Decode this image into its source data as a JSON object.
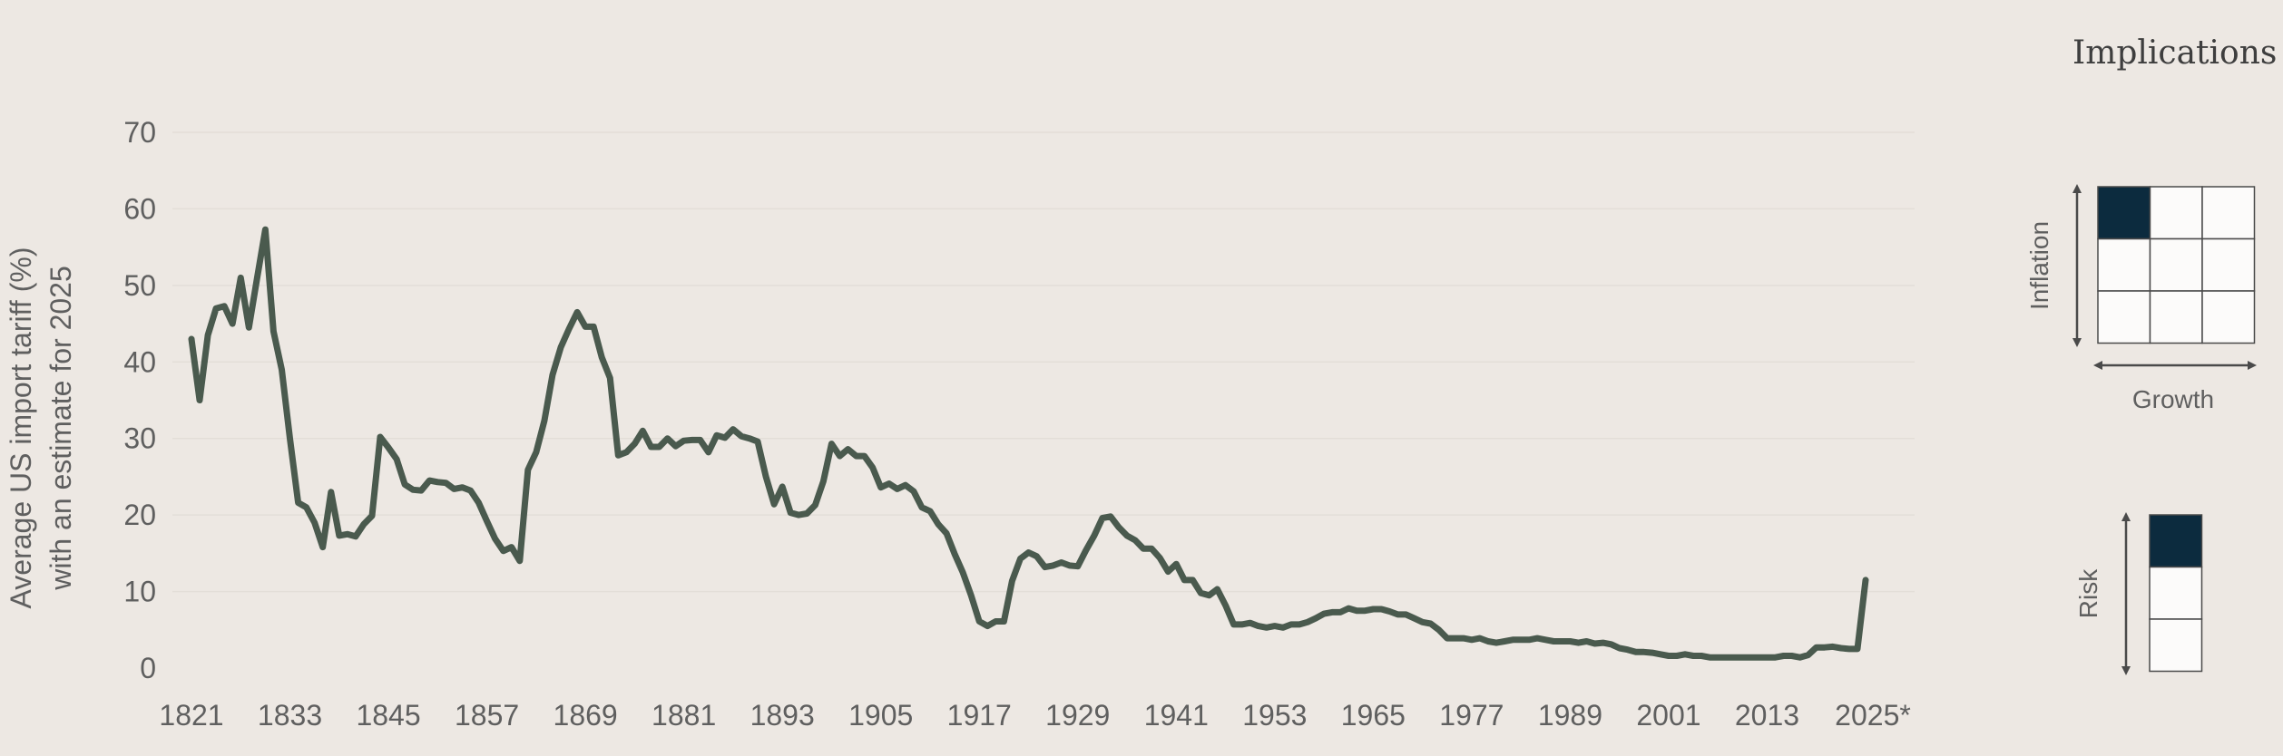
{
  "colors": {
    "background": "#ede8e3",
    "line": "#4a5a4e",
    "grid": "#e3ded8",
    "text": "#5f5f5f",
    "highlight": "#0c2b3e",
    "cell": "#fcfbfa",
    "cell_border": "#4a4a4a"
  },
  "chart_data": {
    "type": "line",
    "title": "",
    "xlabel": "",
    "ylabel_lines": [
      "Average US import tariff (%)",
      "with an estimate for 2025"
    ],
    "ylim": [
      0,
      70
    ],
    "yticks": [
      0,
      10,
      20,
      30,
      40,
      50,
      60,
      70
    ],
    "xlim": [
      1821,
      2025
    ],
    "xticks": [
      {
        "value": 1821,
        "label": "1821"
      },
      {
        "value": 1833,
        "label": "1833"
      },
      {
        "value": 1845,
        "label": "1845"
      },
      {
        "value": 1857,
        "label": "1857"
      },
      {
        "value": 1869,
        "label": "1869"
      },
      {
        "value": 1881,
        "label": "1881"
      },
      {
        "value": 1893,
        "label": "1893"
      },
      {
        "value": 1905,
        "label": "1905"
      },
      {
        "value": 1917,
        "label": "1917"
      },
      {
        "value": 1929,
        "label": "1929"
      },
      {
        "value": 1941,
        "label": "1941"
      },
      {
        "value": 1953,
        "label": "1953"
      },
      {
        "value": 1965,
        "label": "1965"
      },
      {
        "value": 1977,
        "label": "1977"
      },
      {
        "value": 1989,
        "label": "1989"
      },
      {
        "value": 2001,
        "label": "2001"
      },
      {
        "value": 2013,
        "label": "2013"
      },
      {
        "value": 2025,
        "label": "2025*"
      }
    ],
    "grid": true,
    "series": [
      {
        "x": [
          1821,
          1822,
          1823,
          1824,
          1825,
          1826,
          1827,
          1828,
          1829,
          1830,
          1831,
          1832,
          1833,
          1834,
          1835,
          1836,
          1837,
          1838,
          1839,
          1840,
          1841,
          1842,
          1843,
          1844,
          1845,
          1846,
          1847,
          1848,
          1849,
          1850,
          1851,
          1852,
          1853,
          1854,
          1855,
          1856,
          1857,
          1858,
          1859,
          1860,
          1861,
          1862,
          1863,
          1864,
          1865,
          1866,
          1867,
          1868,
          1869,
          1870,
          1871,
          1872,
          1873,
          1874,
          1875,
          1876,
          1877,
          1878,
          1879,
          1880,
          1881,
          1882,
          1883,
          1884,
          1885,
          1886,
          1887,
          1888,
          1889,
          1890,
          1891,
          1892,
          1893,
          1894,
          1895,
          1896,
          1897,
          1898,
          1899,
          1900,
          1901,
          1902,
          1903,
          1904,
          1905,
          1906,
          1907,
          1908,
          1909,
          1910,
          1911,
          1912,
          1913,
          1914,
          1915,
          1916,
          1917,
          1918,
          1919,
          1920,
          1921,
          1922,
          1923,
          1924,
          1925,
          1926,
          1927,
          1928,
          1929,
          1930,
          1931,
          1932,
          1933,
          1934,
          1935,
          1936,
          1937,
          1938,
          1939,
          1940,
          1941,
          1942,
          1943,
          1944,
          1945,
          1946,
          1947,
          1948,
          1949,
          1950,
          1951,
          1952,
          1953,
          1954,
          1955,
          1956,
          1957,
          1958,
          1959,
          1960,
          1961,
          1962,
          1963,
          1964,
          1965,
          1966,
          1967,
          1968,
          1969,
          1970,
          1971,
          1972,
          1973,
          1974,
          1975,
          1976,
          1977,
          1978,
          1979,
          1980,
          1981,
          1982,
          1983,
          1984,
          1985,
          1986,
          1987,
          1988,
          1989,
          1990,
          1991,
          1992,
          1993,
          1994,
          1995,
          1996,
          1997,
          1998,
          1999,
          2000,
          2001,
          2002,
          2003,
          2004,
          2005,
          2006,
          2007,
          2008,
          2009,
          2010,
          2011,
          2012,
          2013,
          2014,
          2015,
          2016,
          2017,
          2018,
          2019,
          2020,
          2021,
          2022,
          2023,
          2024,
          2025
        ],
        "values": [
          43,
          35,
          43.5,
          47,
          47.3,
          45,
          51,
          44.5,
          51,
          57.3,
          44,
          39,
          30,
          21.6,
          21,
          19,
          15.8,
          23,
          17.3,
          17.5,
          17.2,
          18.8,
          19.9,
          30.2,
          28.8,
          27.3,
          24,
          23.3,
          23.2,
          24.5,
          24.3,
          24.2,
          23.4,
          23.6,
          23.2,
          21.6,
          19.2,
          16.9,
          15.3,
          15.8,
          14,
          25.9,
          28.2,
          32.3,
          38.3,
          41.9,
          44.3,
          46.5,
          44.6,
          44.6,
          40.6,
          37.9,
          27.8,
          28.2,
          29.3,
          31,
          28.9,
          28.9,
          30,
          29,
          29.7,
          29.8,
          29.8,
          28.2,
          30.4,
          30.1,
          31.2,
          30.3,
          30,
          29.6,
          25,
          21.4,
          23.7,
          20.3,
          20,
          20.2,
          21.3,
          24.4,
          29.3,
          27.7,
          28.6,
          27.7,
          27.7,
          26.2,
          23.6,
          24.1,
          23.4,
          23.9,
          23.1,
          21,
          20.5,
          18.8,
          17.6,
          14.9,
          12.5,
          9.5,
          6.1,
          5.5,
          6.1,
          6.1,
          11.4,
          14.3,
          15.1,
          14.6,
          13.2,
          13.4,
          13.8,
          13.4,
          13.3,
          15.4,
          17.3,
          19.6,
          19.8,
          18.4,
          17.3,
          16.7,
          15.6,
          15.6,
          14.4,
          12.6,
          13.6,
          11.5,
          11.5,
          9.8,
          9.5,
          10.3,
          8.2,
          5.7,
          5.7,
          5.9,
          5.5,
          5.3,
          5.5,
          5.3,
          5.7,
          5.7,
          6,
          6.5,
          7.1,
          7.3,
          7.3,
          7.8,
          7.5,
          7.5,
          7.7,
          7.7,
          7.4,
          7,
          7,
          6.5,
          6,
          5.8,
          5,
          3.9,
          3.9,
          3.9,
          3.7,
          3.9,
          3.5,
          3.3,
          3.5,
          3.7,
          3.7,
          3.7,
          3.9,
          3.7,
          3.5,
          3.5,
          3.5,
          3.3,
          3.5,
          3.2,
          3.3,
          3.1,
          2.6,
          2.4,
          2.1,
          2.1,
          2,
          1.8,
          1.6,
          1.6,
          1.8,
          1.6,
          1.6,
          1.4,
          1.4,
          1.4,
          1.4,
          1.4,
          1.4,
          1.4,
          1.4,
          1.4,
          1.6,
          1.6,
          1.4,
          1.7,
          2.7,
          2.7,
          2.8,
          2.6,
          2.5,
          2.5,
          11.5
        ]
      }
    ]
  },
  "implications": {
    "title": "Implications",
    "inflation_label": "Inflation",
    "growth_label": "Growth",
    "risk_label": "Risk",
    "grid_highlight": {
      "row": 0,
      "col": 0
    },
    "risk_highlight": 0
  }
}
